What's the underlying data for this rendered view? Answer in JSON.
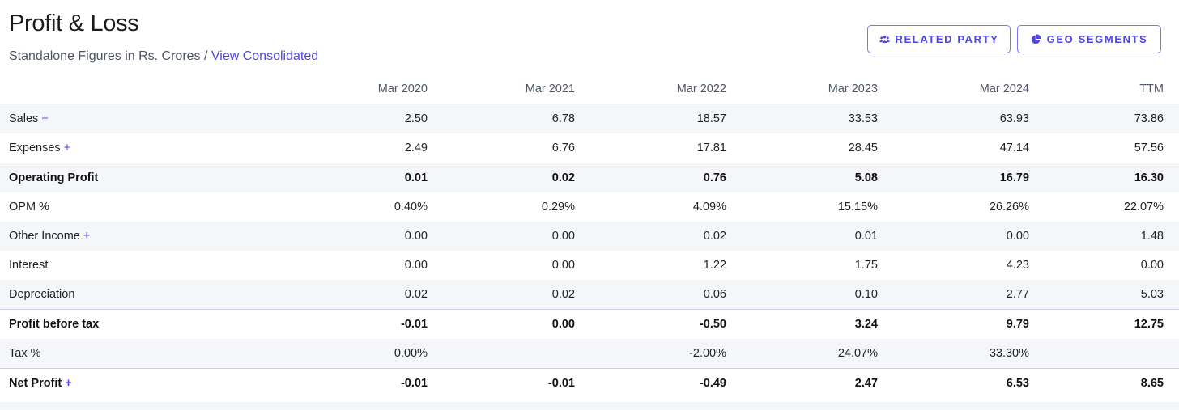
{
  "header": {
    "title": "Profit & Loss",
    "subtitle_text": "Standalone Figures in Rs. Crores / ",
    "subtitle_link": "View Consolidated"
  },
  "buttons": {
    "related_party": "RELATED PARTY",
    "geo_segments": "GEO SEGMENTS"
  },
  "table": {
    "columns": [
      "Mar 2020",
      "Mar 2021",
      "Mar 2022",
      "Mar 2023",
      "Mar 2024",
      "TTM"
    ],
    "rows": [
      {
        "label": "Sales",
        "expand": "+",
        "values": [
          "2.50",
          "6.78",
          "18.57",
          "33.53",
          "63.93",
          "73.86"
        ]
      },
      {
        "label": "Expenses",
        "expand": "+",
        "values": [
          "2.49",
          "6.76",
          "17.81",
          "28.45",
          "47.14",
          "57.56"
        ]
      },
      {
        "label": "Operating Profit",
        "values": [
          "0.01",
          "0.02",
          "0.76",
          "5.08",
          "16.79",
          "16.30"
        ]
      },
      {
        "label": "OPM %",
        "values": [
          "0.40%",
          "0.29%",
          "4.09%",
          "15.15%",
          "26.26%",
          "22.07%"
        ]
      },
      {
        "label": "Other Income",
        "expand": "+",
        "values": [
          "0.00",
          "0.00",
          "0.02",
          "0.01",
          "0.00",
          "1.48"
        ]
      },
      {
        "label": "Interest",
        "values": [
          "0.00",
          "0.00",
          "1.22",
          "1.75",
          "4.23",
          "0.00"
        ]
      },
      {
        "label": "Depreciation",
        "values": [
          "0.02",
          "0.02",
          "0.06",
          "0.10",
          "2.77",
          "5.03"
        ]
      },
      {
        "label": "Profit before tax",
        "values": [
          "-0.01",
          "0.00",
          "-0.50",
          "3.24",
          "9.79",
          "12.75"
        ]
      },
      {
        "label": "Tax %",
        "values": [
          "0.00%",
          "",
          "-2.00%",
          "24.07%",
          "33.30%",
          ""
        ]
      },
      {
        "label": "Net Profit",
        "expand": "+",
        "values": [
          "-0.01",
          "-0.01",
          "-0.49",
          "2.47",
          "6.53",
          "8.65"
        ]
      }
    ]
  },
  "colors": {
    "accent": "#4f46e5",
    "stripe": "#f5f6fa",
    "divider": "#c9d2e6"
  }
}
